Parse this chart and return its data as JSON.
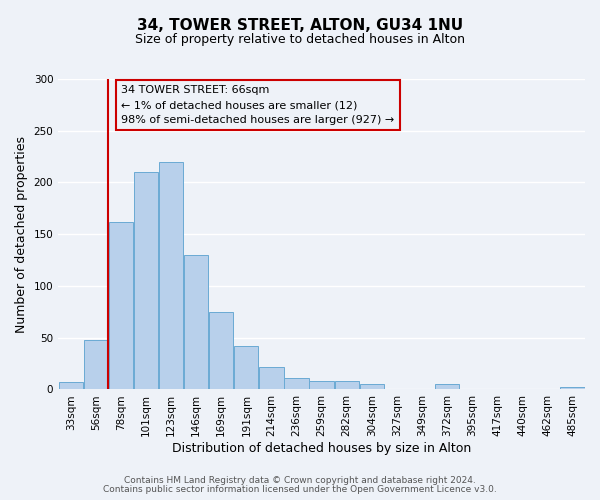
{
  "title": "34, TOWER STREET, ALTON, GU34 1NU",
  "subtitle": "Size of property relative to detached houses in Alton",
  "bar_labels": [
    "33sqm",
    "56sqm",
    "78sqm",
    "101sqm",
    "123sqm",
    "146sqm",
    "169sqm",
    "191sqm",
    "214sqm",
    "236sqm",
    "259sqm",
    "282sqm",
    "304sqm",
    "327sqm",
    "349sqm",
    "372sqm",
    "395sqm",
    "417sqm",
    "440sqm",
    "462sqm",
    "485sqm"
  ],
  "bar_heights": [
    7,
    48,
    162,
    210,
    220,
    130,
    75,
    42,
    22,
    11,
    8,
    8,
    5,
    0,
    0,
    5,
    0,
    0,
    0,
    0,
    2
  ],
  "bar_color": "#b8d0eb",
  "bar_edge_color": "#6aaad4",
  "ylim": [
    0,
    300
  ],
  "yticks": [
    0,
    50,
    100,
    150,
    200,
    250,
    300
  ],
  "ylabel": "Number of detached properties",
  "xlabel": "Distribution of detached houses by size in Alton",
  "vline_x_idx": 1,
  "vline_x_offset": 0.5,
  "vline_color": "#cc0000",
  "annotation_title": "34 TOWER STREET: 66sqm",
  "annotation_line1": "← 1% of detached houses are smaller (12)",
  "annotation_line2": "98% of semi-detached houses are larger (927) →",
  "annotation_box_color": "#cc0000",
  "footer_line1": "Contains HM Land Registry data © Crown copyright and database right 2024.",
  "footer_line2": "Contains public sector information licensed under the Open Government Licence v3.0.",
  "background_color": "#eef2f8",
  "grid_color": "#ffffff",
  "title_fontsize": 11,
  "subtitle_fontsize": 9,
  "axis_label_fontsize": 9,
  "tick_fontsize": 7.5,
  "footer_fontsize": 6.5,
  "annotation_fontsize": 8
}
